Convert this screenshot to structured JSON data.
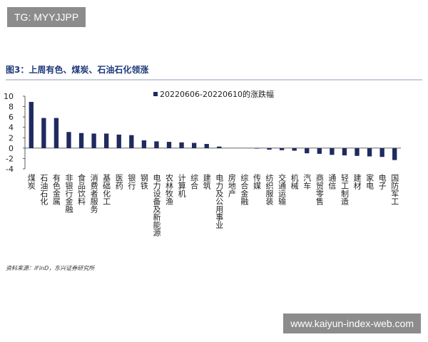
{
  "chart_data": {
    "type": "bar",
    "title": "图3：上周有色、煤炭、石油石化领涨",
    "categories": [
      "煤炭",
      "石油石化",
      "有色金属",
      "非银行金融",
      "食品饮料",
      "消费者服务",
      "基础化工",
      "医药",
      "银行",
      "钢铁",
      "电力设备及新能源",
      "农林牧渔",
      "计算机",
      "综合",
      "建筑",
      "电力及公用事业",
      "房地产",
      "综合金融",
      "传媒",
      "纺织服装",
      "交通运输",
      "机械",
      "汽车",
      "商贸零售",
      "通信",
      "轻工制造",
      "建材",
      "家电",
      "电子",
      "国防军工"
    ],
    "series": [
      {
        "name": "20220606-20220610的涨跌幅",
        "color": "#1f2a5e",
        "values": [
          8.9,
          5.8,
          5.8,
          3.1,
          2.9,
          2.8,
          2.8,
          2.6,
          2.5,
          1.5,
          1.3,
          1.2,
          1.1,
          1.0,
          0.8,
          0.3,
          0.0,
          0.0,
          -0.1,
          -0.3,
          -0.4,
          -0.5,
          -1.0,
          -1.1,
          -1.3,
          -1.4,
          -1.5,
          -1.6,
          -1.7,
          -2.3
        ]
      }
    ],
    "ylim": [
      -4,
      10
    ],
    "yticks": [
      -4,
      -2,
      0,
      2,
      4,
      6,
      8,
      10
    ],
    "source": "资料来源：iFinD，东兴证券研究所"
  },
  "watermarks": [
    "TG: MYYJJPP",
    "www.kaiyun-index-web.com"
  ]
}
